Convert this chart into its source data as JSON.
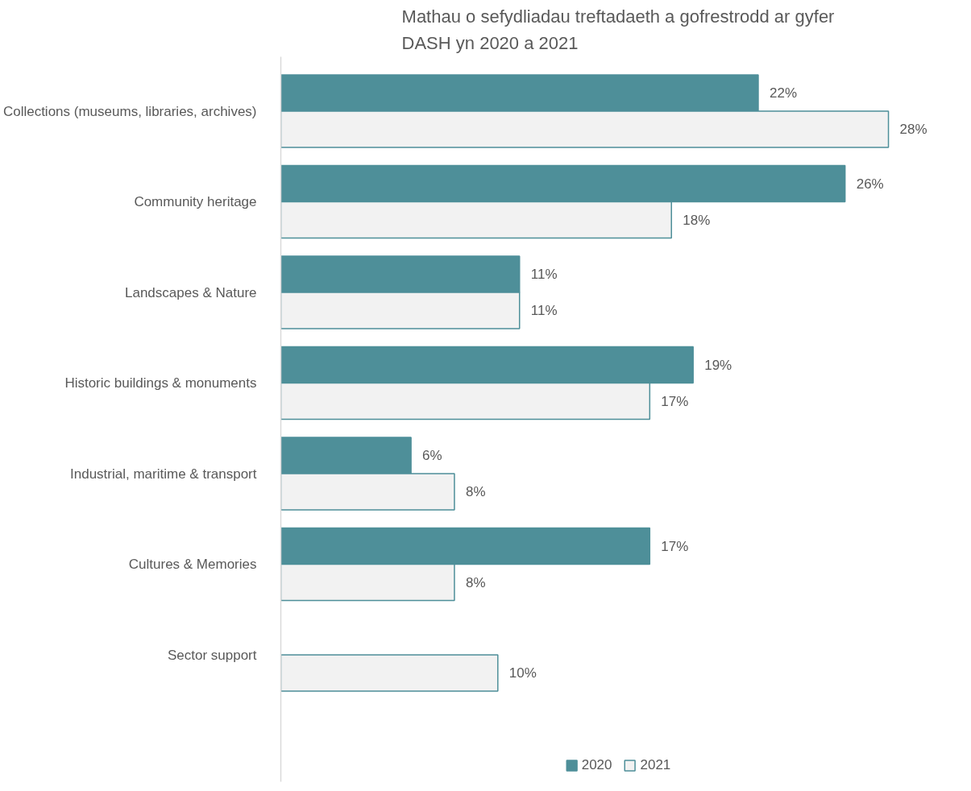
{
  "chart_data": {
    "type": "bar",
    "orientation": "horizontal",
    "title": "Mathau o sefydliadau treftadaeth a gofrestrodd ar gyfer DASH yn 2020 a 2021",
    "categories": [
      "Collections (museums, libraries, archives)",
      "Community heritage",
      "Landscapes & Nature",
      "Historic buildings & monuments",
      "Industrial, maritime & transport",
      "Cultures & Memories",
      "Sector support"
    ],
    "series": [
      {
        "name": "2020",
        "color": "#4e8f99",
        "values": [
          22,
          26,
          11,
          19,
          6,
          17,
          null
        ],
        "value_labels": [
          "22%",
          "26%",
          "11%",
          "19%",
          "6%",
          "17%",
          null
        ]
      },
      {
        "name": "2021",
        "color": "#f2f2f2",
        "values": [
          28,
          18,
          11,
          17,
          8,
          8,
          10
        ],
        "value_labels": [
          "28%",
          "18%",
          "11%",
          "17%",
          "8%",
          "8%",
          "10%"
        ]
      }
    ],
    "legend": "bottom",
    "grid": false
  }
}
